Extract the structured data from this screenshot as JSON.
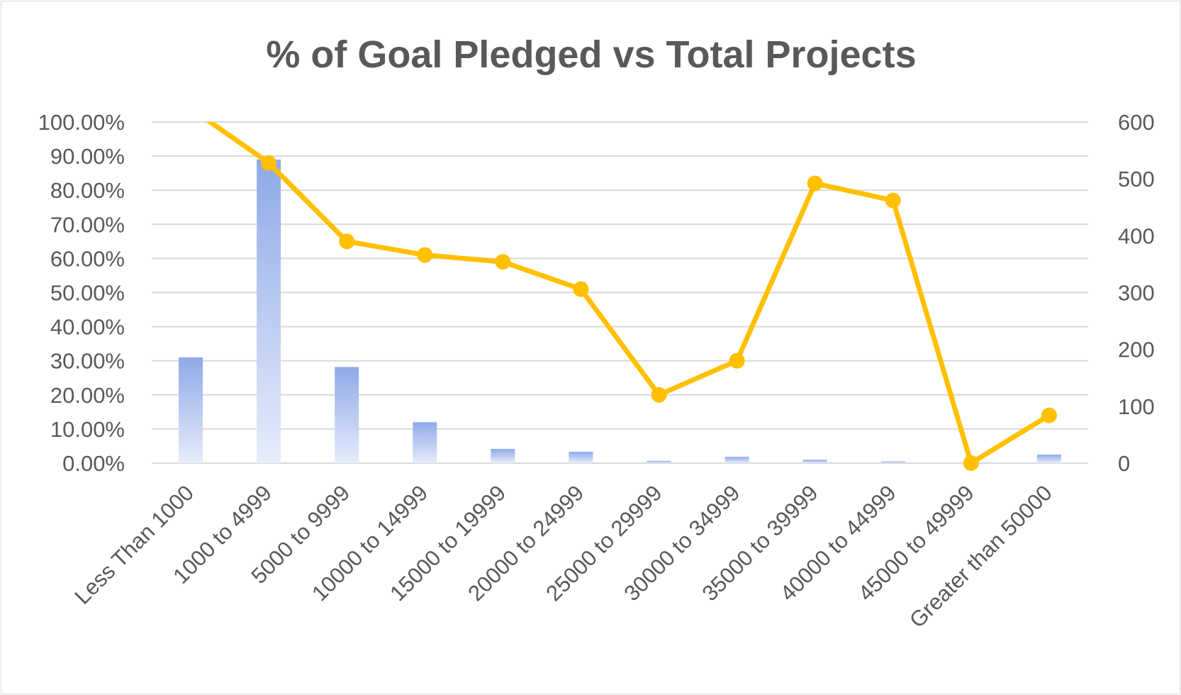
{
  "chart_data": {
    "type": "bar+line",
    "title": "% of Goal Pledged vs Total Projects",
    "categories": [
      "Less Than 1000",
      "1000 to 4999",
      "5000 to 9999",
      "10000 to 14999",
      "15000 to 19999",
      "20000 to 24999",
      "25000 to 29999",
      "30000 to 34999",
      "35000 to 39999",
      "40000 to 44999",
      "45000 to 49999",
      "Greater than 50000"
    ],
    "series": [
      {
        "type": "bar",
        "axis": "right",
        "values": [
          186,
          534,
          169,
          72,
          25,
          20,
          4,
          11,
          6,
          3,
          0,
          15
        ]
      },
      {
        "type": "line",
        "axis": "left",
        "values": [
          1.04,
          0.88,
          0.65,
          0.61,
          0.59,
          0.51,
          0.2,
          0.3,
          0.82,
          0.77,
          0.0,
          0.14
        ]
      }
    ],
    "y_left": {
      "ylim": [
        0,
        1
      ],
      "ticks": [
        0,
        0.1,
        0.2,
        0.3,
        0.4,
        0.5,
        0.6,
        0.7,
        0.8,
        0.9,
        1.0
      ],
      "tick_labels": [
        "0.00%",
        "10.00%",
        "20.00%",
        "30.00%",
        "40.00%",
        "50.00%",
        "60.00%",
        "70.00%",
        "80.00%",
        "90.00%",
        "100.00%"
      ]
    },
    "y_right": {
      "ylim": [
        0,
        600
      ],
      "ticks": [
        0,
        100,
        200,
        300,
        400,
        500,
        600
      ],
      "tick_labels": [
        "0",
        "100",
        "200",
        "300",
        "400",
        "500",
        "600"
      ]
    },
    "grid": true,
    "legend": "none",
    "colors": {
      "line": "#ffc000",
      "bar_top": "#8fa9e8",
      "bar_bottom": "#e6ecfb",
      "grid": "#d9d9d9",
      "text": "#595959"
    }
  }
}
